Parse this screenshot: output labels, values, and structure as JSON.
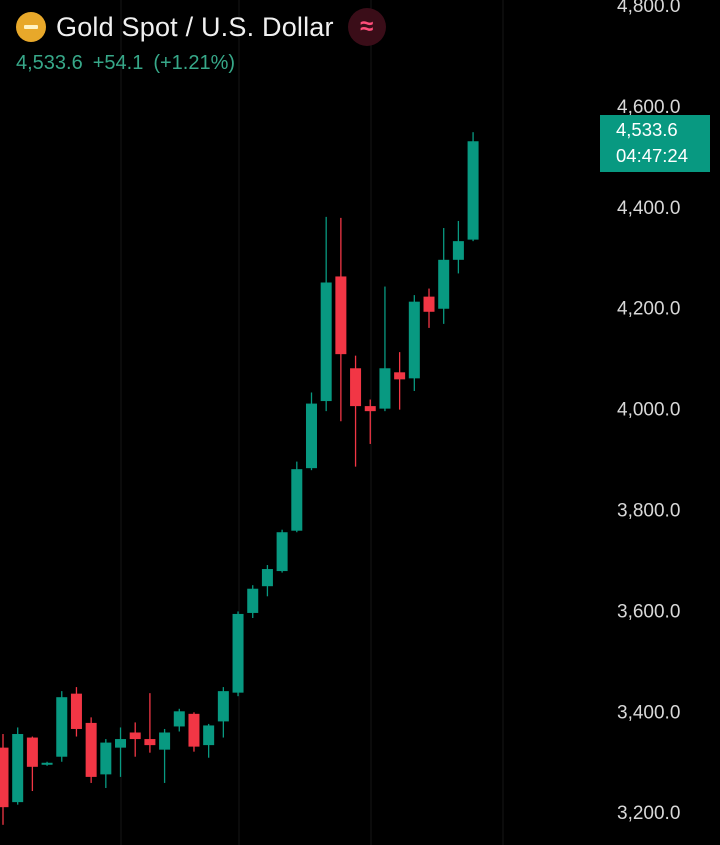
{
  "header": {
    "title": "Gold Spot / U.S. Dollar",
    "last_price": "4,533.6",
    "change": "+54.1",
    "change_pct": "(+1.21%)",
    "icons": [
      "gold-bars-icon",
      "data-feed-icon"
    ]
  },
  "price_tag": {
    "price": "4,533.6",
    "countdown": "04:47:24",
    "color": "#089981"
  },
  "colors": {
    "up": "#089981",
    "down": "#f23645",
    "background": "#000000",
    "gridline": "#161616"
  },
  "chart_data": {
    "type": "candlestick",
    "y_axis": {
      "range": [
        3135,
        4810
      ],
      "ticks": [
        "3,200.0",
        "3,400.0",
        "3,600.0",
        "3,800.0",
        "4,000.0",
        "4,200.0",
        "4,400.0",
        "4,600.0",
        "4,800.0"
      ],
      "position": "right"
    },
    "grid": "vertical-only",
    "candles": [
      {
        "o": 3328,
        "h": 3355,
        "l": 3175,
        "c": 3210
      },
      {
        "o": 3220,
        "h": 3368,
        "l": 3215,
        "c": 3355
      },
      {
        "o": 3348,
        "h": 3350,
        "l": 3242,
        "c": 3290
      },
      {
        "o": 3295,
        "h": 3300,
        "l": 3292,
        "c": 3298
      },
      {
        "o": 3310,
        "h": 3440,
        "l": 3300,
        "c": 3428
      },
      {
        "o": 3435,
        "h": 3448,
        "l": 3350,
        "c": 3365
      },
      {
        "o": 3377,
        "h": 3388,
        "l": 3258,
        "c": 3270
      },
      {
        "o": 3275,
        "h": 3345,
        "l": 3248,
        "c": 3338
      },
      {
        "o": 3328,
        "h": 3368,
        "l": 3270,
        "c": 3345
      },
      {
        "o": 3358,
        "h": 3378,
        "l": 3310,
        "c": 3345
      },
      {
        "o": 3345,
        "h": 3436,
        "l": 3318,
        "c": 3333
      },
      {
        "o": 3324,
        "h": 3365,
        "l": 3258,
        "c": 3358
      },
      {
        "o": 3370,
        "h": 3405,
        "l": 3360,
        "c": 3400
      },
      {
        "o": 3395,
        "h": 3398,
        "l": 3320,
        "c": 3330
      },
      {
        "o": 3333,
        "h": 3375,
        "l": 3308,
        "c": 3372
      },
      {
        "o": 3380,
        "h": 3448,
        "l": 3348,
        "c": 3440
      },
      {
        "o": 3437,
        "h": 3598,
        "l": 3430,
        "c": 3593
      },
      {
        "o": 3595,
        "h": 3650,
        "l": 3585,
        "c": 3643
      },
      {
        "o": 3648,
        "h": 3690,
        "l": 3628,
        "c": 3682
      },
      {
        "o": 3678,
        "h": 3760,
        "l": 3675,
        "c": 3755
      },
      {
        "o": 3758,
        "h": 3895,
        "l": 3755,
        "c": 3880
      },
      {
        "o": 3882,
        "h": 4032,
        "l": 3878,
        "c": 4010
      },
      {
        "o": 4015,
        "h": 4380,
        "l": 3995,
        "c": 4250
      },
      {
        "o": 4262,
        "h": 4378,
        "l": 3975,
        "c": 4108
      },
      {
        "o": 4080,
        "h": 4105,
        "l": 3885,
        "c": 4005
      },
      {
        "o": 4005,
        "h": 4018,
        "l": 3930,
        "c": 3995
      },
      {
        "o": 4000,
        "h": 4242,
        "l": 3995,
        "c": 4080
      },
      {
        "o": 4072,
        "h": 4112,
        "l": 3998,
        "c": 4058
      },
      {
        "o": 4060,
        "h": 4225,
        "l": 4035,
        "c": 4212
      },
      {
        "o": 4222,
        "h": 4238,
        "l": 4160,
        "c": 4192
      },
      {
        "o": 4198,
        "h": 4358,
        "l": 4168,
        "c": 4295
      },
      {
        "o": 4295,
        "h": 4372,
        "l": 4268,
        "c": 4332
      },
      {
        "o": 4335,
        "h": 4548,
        "l": 4332,
        "c": 4530
      }
    ]
  }
}
